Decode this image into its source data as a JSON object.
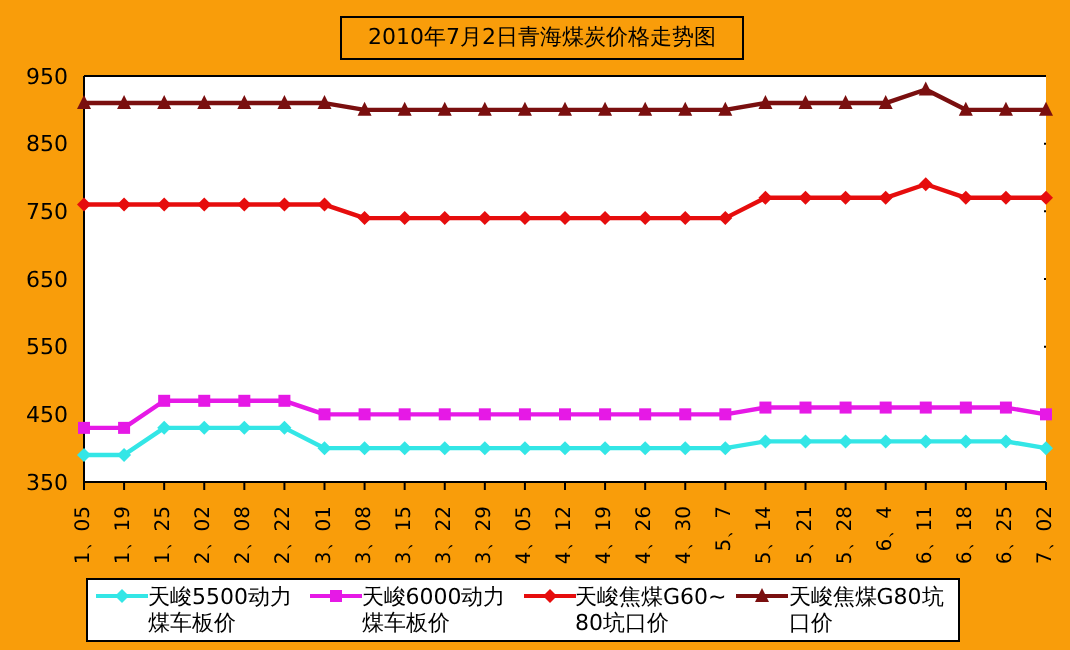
{
  "chart_data": {
    "type": "line",
    "title": "2010年7月2日青海煤炭价格走势图",
    "categories": [
      "1、05",
      "1、19",
      "1、25",
      "2、02",
      "2、08",
      "2、22",
      "3、01",
      "3、08",
      "3、15",
      "3、22",
      "3、29",
      "4、05",
      "4、12",
      "4、19",
      "4、26",
      "4、30",
      "5、7",
      "5、14",
      "5、21",
      "5、28",
      "6、4",
      "6、11",
      "6、18",
      "6、25",
      "7、02"
    ],
    "series": [
      {
        "name": "天峻5500动力煤车板价",
        "color": "#33e6e6",
        "marker": "diamond",
        "values": [
          390,
          390,
          430,
          430,
          430,
          430,
          400,
          400,
          400,
          400,
          400,
          400,
          400,
          400,
          400,
          400,
          400,
          410,
          410,
          410,
          410,
          410,
          410,
          410,
          400
        ]
      },
      {
        "name": "天峻6000动力煤车板价",
        "color": "#e619e6",
        "marker": "square",
        "values": [
          430,
          430,
          470,
          470,
          470,
          470,
          450,
          450,
          450,
          450,
          450,
          450,
          450,
          450,
          450,
          450,
          450,
          460,
          460,
          460,
          460,
          460,
          460,
          460,
          450
        ]
      },
      {
        "name": "天峻焦煤G60~80坑口价",
        "color": "#e60d0d",
        "marker": "diamond",
        "values": [
          760,
          760,
          760,
          760,
          760,
          760,
          760,
          740,
          740,
          740,
          740,
          740,
          740,
          740,
          740,
          740,
          740,
          770,
          770,
          770,
          770,
          790,
          770,
          770,
          770
        ]
      },
      {
        "name": "天峻焦煤G80坑口价",
        "color": "#7a0f0f",
        "marker": "triangle",
        "values": [
          910,
          910,
          910,
          910,
          910,
          910,
          910,
          900,
          900,
          900,
          900,
          900,
          900,
          900,
          900,
          900,
          900,
          910,
          910,
          910,
          910,
          930,
          900,
          900,
          900
        ]
      }
    ],
    "ylim": [
      350,
      950
    ],
    "yticks": [
      350,
      450,
      550,
      650,
      750,
      850,
      950
    ],
    "grid": "y",
    "legend": "bottom",
    "line_style": "solid"
  }
}
